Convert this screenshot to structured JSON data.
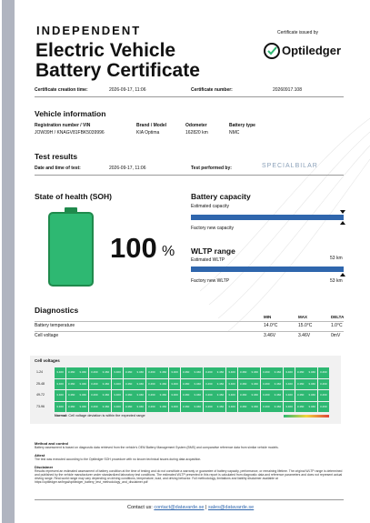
{
  "header": {
    "kicker": "INDEPENDENT",
    "title_line1": "Electric Vehicle",
    "title_line2": "Battery Certificate",
    "issued_by": "Certificate issued by",
    "issuer": "Optiledger"
  },
  "meta": {
    "creation_label": "Certificate creation time:",
    "creation_value": "2026-09-17, 11:06",
    "number_label": "Certificate number:",
    "number_value": "20260917.108"
  },
  "vehicle": {
    "title": "Vehicle information",
    "columns": [
      {
        "label": "Registration number / VIN",
        "value": "JOW39H / KNAGV81FBK5039996"
      },
      {
        "label": "Brand / Model",
        "value": "KIA Optima"
      },
      {
        "label": "Odometer",
        "value": "162820 km"
      },
      {
        "label": "Battery type",
        "value": "NMC"
      }
    ]
  },
  "test": {
    "title": "Test results",
    "date_label": "Date and time of test:",
    "date_value": "2026-09-17, 11:06",
    "by_label": "Test performed by:",
    "by_value": "SPECIALBILAR"
  },
  "soh": {
    "title": "State of health (SOH)",
    "value": "100",
    "unit": "%"
  },
  "capacity": {
    "title": "Battery capacity",
    "estimated": "Estimated capacity",
    "factory": "Factory new capacity"
  },
  "wltp": {
    "title": "WLTP range",
    "estimated_label": "Estimated WLTP",
    "estimated_value": "53 km",
    "factory_label": "Factory new WLTP",
    "factory_value": "53 km"
  },
  "diagnostics": {
    "title": "Diagnostics",
    "headers": [
      "MIN",
      "MAX",
      "DELTA"
    ],
    "rows": [
      [
        "Battery temperature",
        "14.0°C",
        "15.0°C",
        "1.0°C"
      ],
      [
        "Cell voltage",
        "3.46V",
        "3.46V",
        "0mV"
      ]
    ]
  },
  "cells": {
    "title": "Cell voltages",
    "rows": [
      {
        "label": "1-24",
        "values": [
          "3.460",
          "3.460",
          "3.460",
          "3.460",
          "3.460",
          "3.460",
          "3.460",
          "3.460",
          "3.460",
          "3.460",
          "3.460",
          "3.460",
          "3.460",
          "3.460",
          "3.460",
          "3.460",
          "3.460",
          "3.460",
          "3.460",
          "3.460",
          "3.460",
          "3.460",
          "3.460",
          "3.460"
        ]
      },
      {
        "label": "25-48",
        "values": [
          "3.460",
          "3.460",
          "3.460",
          "3.460",
          "3.460",
          "3.460",
          "3.460",
          "3.460",
          "3.460",
          "3.460",
          "3.460",
          "3.460",
          "3.460",
          "3.460",
          "3.460",
          "3.460",
          "3.460",
          "3.460",
          "3.460",
          "3.460",
          "3.460",
          "3.460",
          "3.460",
          "3.460"
        ]
      },
      {
        "label": "49-72",
        "values": [
          "3.460",
          "3.460",
          "3.460",
          "3.460",
          "3.460",
          "3.460",
          "3.460",
          "3.460",
          "3.460",
          "3.460",
          "3.460",
          "3.460",
          "3.460",
          "3.460",
          "3.460",
          "3.460",
          "3.460",
          "3.460",
          "3.460",
          "3.460",
          "3.460",
          "3.460",
          "3.460",
          "3.460"
        ]
      },
      {
        "label": "73-96",
        "values": [
          "3.460",
          "3.460",
          "3.460",
          "3.460",
          "3.460",
          "3.460",
          "3.460",
          "3.460",
          "3.460",
          "3.460",
          "3.460",
          "3.460",
          "3.460",
          "3.460",
          "3.460",
          "3.460",
          "3.460",
          "3.460",
          "3.460",
          "3.460",
          "3.460",
          "3.460",
          "3.460",
          "3.460"
        ]
      }
    ],
    "legend_label": "Normal:",
    "legend_text": "Cell voltage deviation is within the expected range"
  },
  "notes": [
    {
      "title": "Method and control",
      "text": "Battery assessment is based on diagnostic data retrieved from the vehicle's OEM Battery Management System (BMS) and comparative reference data from similar vehicle models."
    },
    {
      "title": "Attest",
      "text": "The test was executed according to the Optiledger SOH procedure with no known technical issues during data acquisition."
    },
    {
      "title": "Disclaimer",
      "text": "Results represent an estimated assessment of battery condition at the time of testing and do not constitute a warranty or guarantee of battery capacity, performance, or remaining lifetime. The original WLTP range is determined and published by the vehicle manufacturer under standardized laboratory test conditions. The estimated WLTP presented in this report is calculated from diagnostic data and reference parameters and does not represent actual driving range. Real-world range may vary depending on driving conditions, temperature, load, and driving behavior. Full methodology, limitations and liability disclaimer available at https://optiledger.se/legal/optiledger_battery_test_methodology_and_disclaimer.pdf"
    }
  ],
  "footer": {
    "label": "Contact us:",
    "email1": "contact@datavarde.se",
    "separator": "|",
    "email2": "sales@datavarde.se"
  }
}
